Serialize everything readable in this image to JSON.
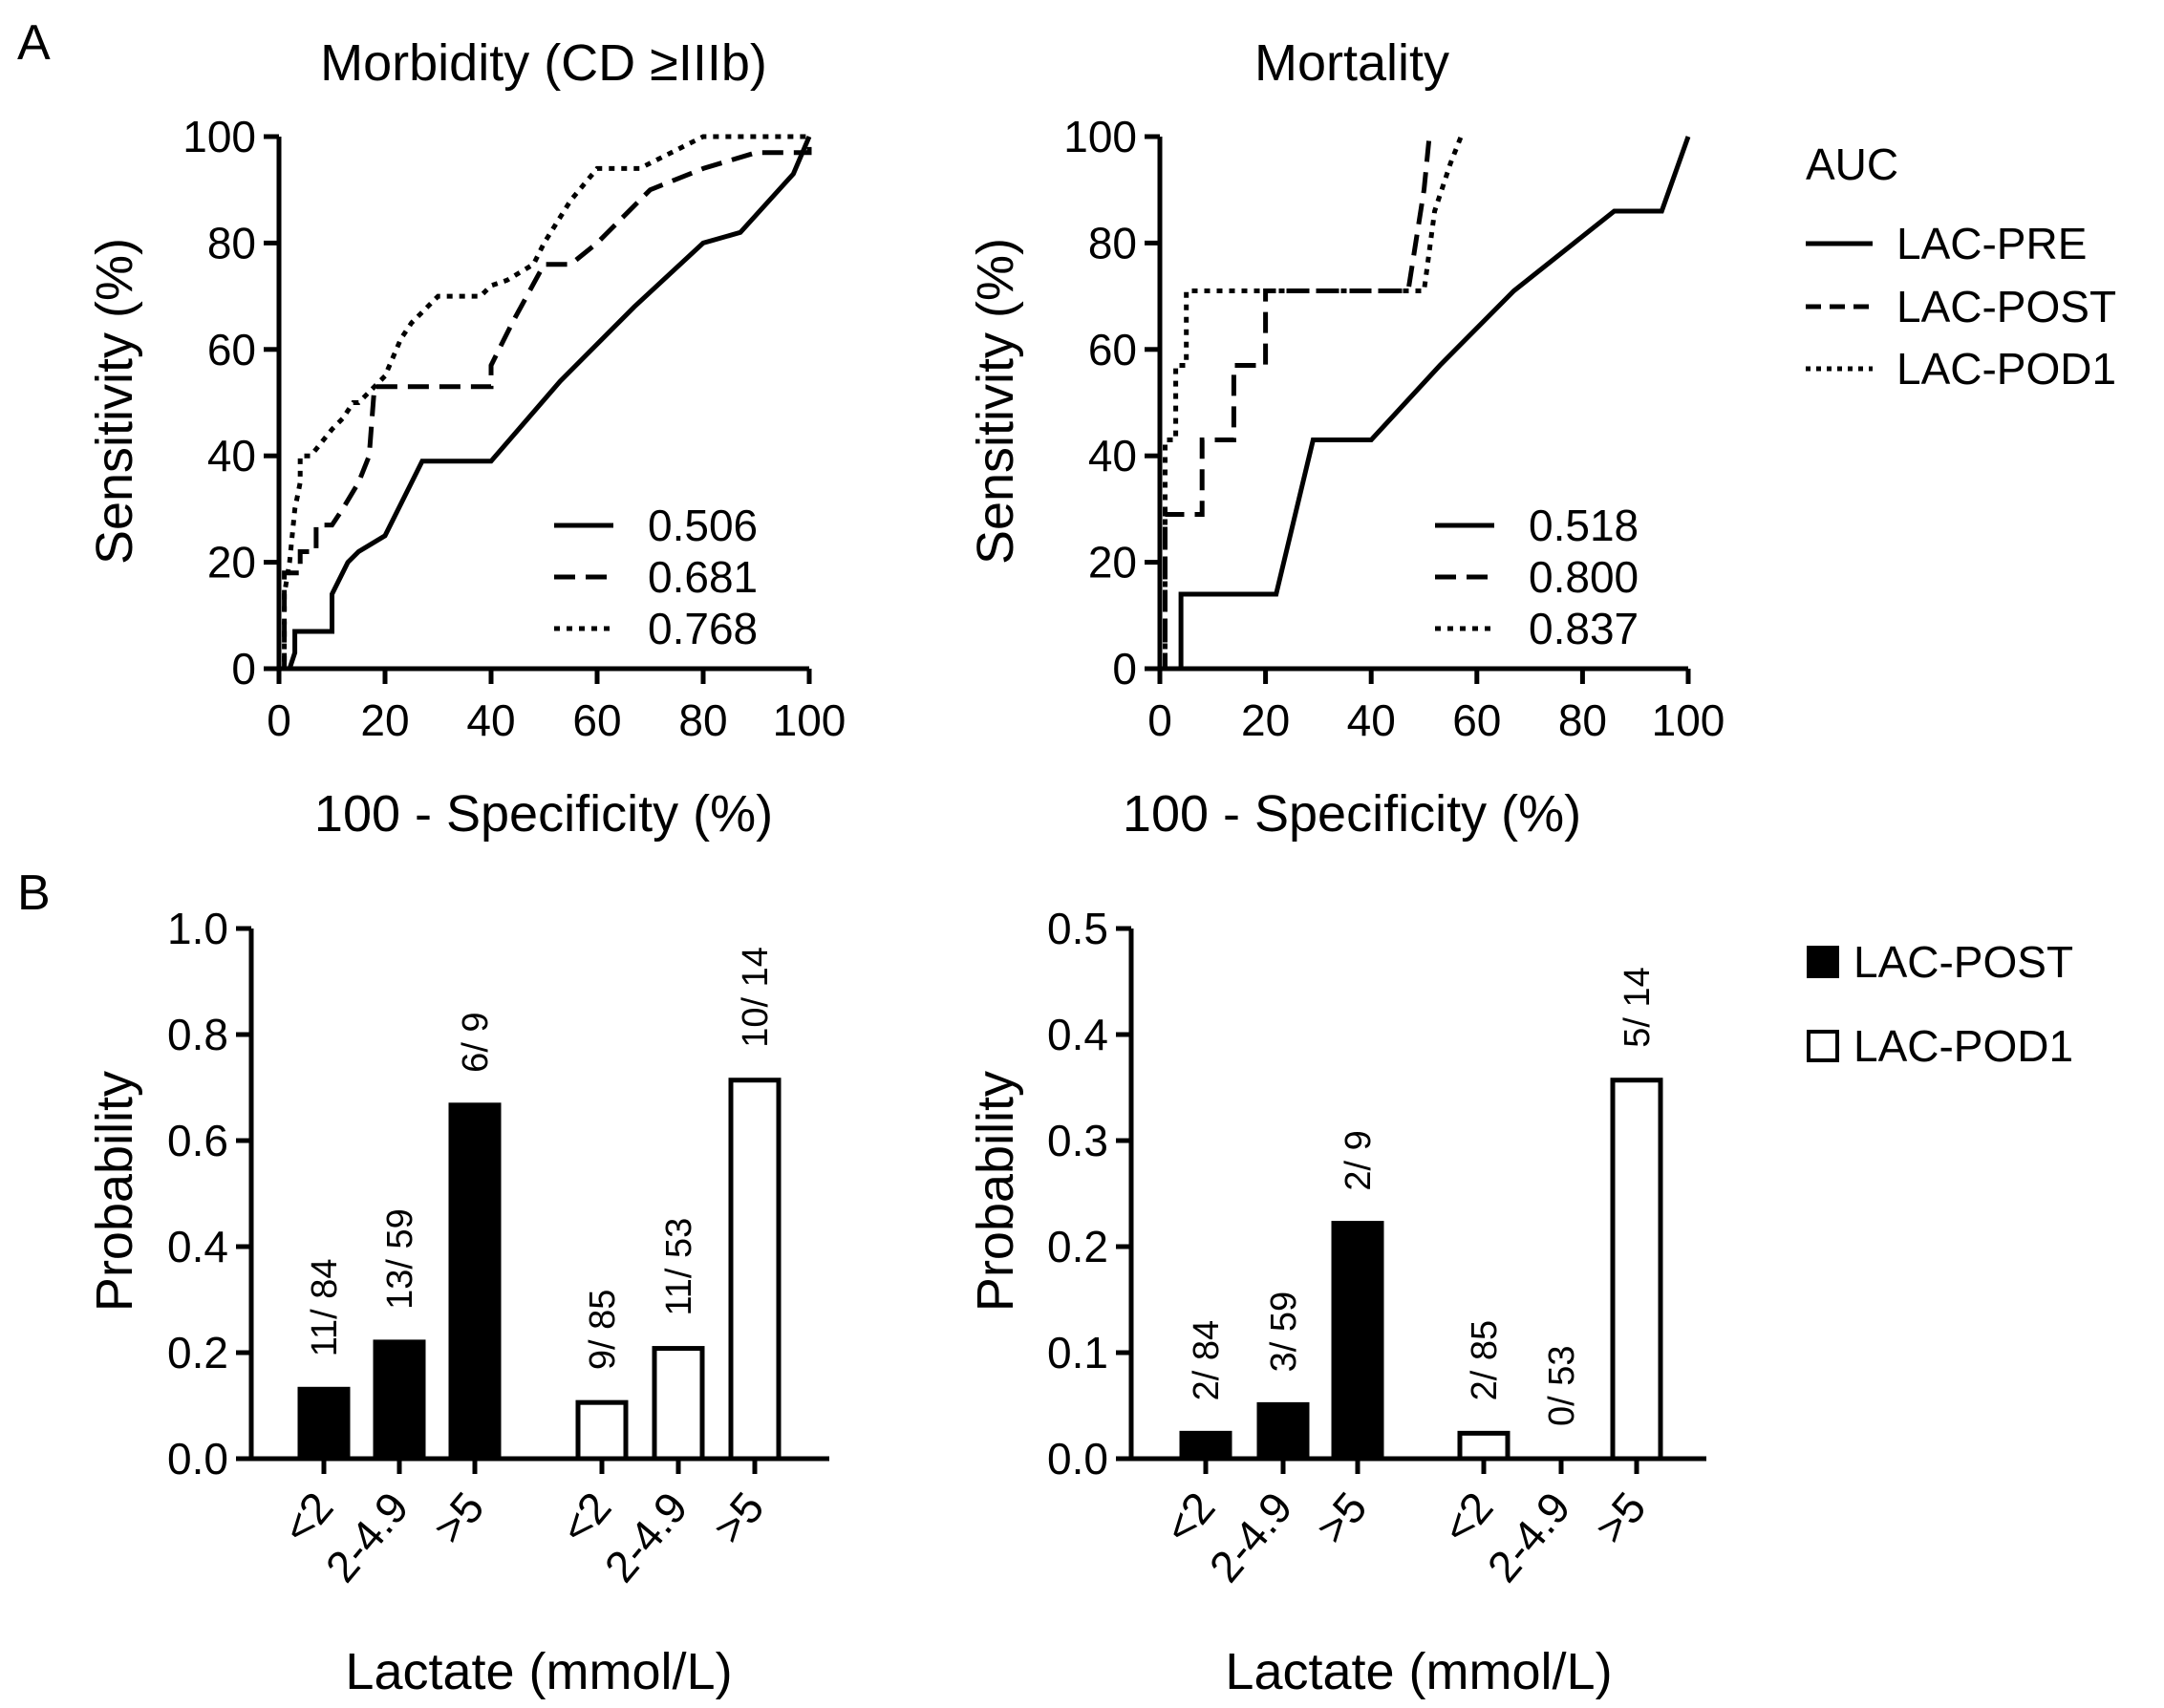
{
  "panel_labels": [
    "A",
    "B"
  ],
  "chart_data": [
    {
      "type": "line",
      "id": "roc-morbidity",
      "title": "Morbidity (CD ≥IIIb)",
      "xlabel": "100 - Specificity (%)",
      "ylabel": "Sensitivity (%)",
      "xlim": [
        0,
        100
      ],
      "ylim": [
        0,
        100
      ],
      "xticks": [
        "0",
        "20",
        "40",
        "60",
        "80",
        "100"
      ],
      "yticks": [
        "0",
        "20",
        "40",
        "60",
        "80",
        "100"
      ],
      "series": [
        {
          "name": "LAC-PRE",
          "style": "solid",
          "auc": "0.506",
          "x": [
            0,
            2,
            3,
            3,
            10,
            10,
            13,
            15,
            20,
            27,
            40,
            53,
            67,
            80,
            87,
            97,
            100
          ],
          "y": [
            0,
            0,
            3,
            7,
            7,
            14,
            20,
            22,
            25,
            39,
            39,
            54,
            68,
            80,
            82,
            93,
            100
          ]
        },
        {
          "name": "LAC-POST",
          "style": "dashed",
          "auc": "0.681",
          "x": [
            0,
            1,
            1,
            4,
            4,
            7,
            7,
            10,
            12,
            15,
            17,
            18,
            20,
            30,
            40,
            40,
            44,
            50,
            55,
            60,
            70,
            80,
            90,
            100,
            100
          ],
          "y": [
            0,
            0,
            18,
            18,
            22,
            22,
            27,
            27,
            30,
            35,
            40,
            53,
            53,
            53,
            53,
            57,
            65,
            76,
            76,
            80,
            90,
            94,
            97,
            97,
            100
          ]
        },
        {
          "name": "LAC-POD1",
          "style": "dotted",
          "auc": "0.768",
          "x": [
            0,
            1,
            1,
            2,
            3,
            4,
            4,
            6,
            10,
            12,
            14,
            15,
            17,
            20,
            23,
            25,
            27,
            30,
            33,
            38,
            40,
            43,
            48,
            50,
            55,
            60,
            68,
            72,
            80,
            100
          ],
          "y": [
            0,
            0,
            14,
            20,
            30,
            35,
            40,
            40,
            45,
            47,
            50,
            50,
            52,
            55,
            62,
            65,
            67,
            70,
            70,
            70,
            72,
            73,
            76,
            80,
            88,
            94,
            94,
            96,
            100,
            100
          ]
        }
      ]
    },
    {
      "type": "line",
      "id": "roc-mortality",
      "title": "Mortality",
      "xlabel": "100 - Specificity (%)",
      "ylabel": "Sensitivity (%)",
      "xlim": [
        0,
        100
      ],
      "ylim": [
        0,
        100
      ],
      "xticks": [
        "0",
        "20",
        "40",
        "60",
        "80",
        "100"
      ],
      "yticks": [
        "0",
        "20",
        "40",
        "60",
        "80",
        "100"
      ],
      "series": [
        {
          "name": "LAC-PRE",
          "style": "solid",
          "auc": "0.518",
          "x": [
            0,
            4,
            4,
            22,
            29,
            40,
            53,
            67,
            86,
            95,
            100
          ],
          "y": [
            0,
            0,
            14,
            14,
            43,
            43,
            57,
            71,
            86,
            86,
            100
          ]
        },
        {
          "name": "LAC-POST",
          "style": "dashed",
          "auc": "0.800",
          "x": [
            0,
            1,
            1,
            8,
            8,
            14,
            14,
            20,
            20,
            47,
            50,
            51
          ],
          "y": [
            0,
            0,
            29,
            29,
            43,
            43,
            57,
            57,
            71,
            71,
            90,
            100
          ]
        },
        {
          "name": "LAC-POD1",
          "style": "dotted",
          "auc": "0.837",
          "x": [
            0,
            1,
            1,
            3,
            3,
            5,
            5,
            50,
            52,
            55,
            57
          ],
          "y": [
            0,
            0,
            43,
            43,
            57,
            57,
            71,
            71,
            86,
            95,
            100
          ]
        }
      ]
    },
    {
      "type": "bar",
      "id": "bar-morbidity",
      "xlabel": "Lactate (mmol/L)",
      "ylabel": "Probability",
      "ylim": [
        0,
        1.0
      ],
      "yticks": [
        "0.0",
        "0.2",
        "0.4",
        "0.6",
        "0.8",
        "1.0"
      ],
      "categories": [
        "<2",
        "2-4.9",
        ">5",
        "<2",
        "2-4.9",
        ">5"
      ],
      "groups": [
        "LAC-POST",
        "LAC-POST",
        "LAC-POST",
        "LAC-POD1",
        "LAC-POD1",
        "LAC-POD1"
      ],
      "values": [
        0.131,
        0.22,
        0.667,
        0.106,
        0.208,
        0.714
      ],
      "labels": [
        "11/ 84",
        "13/ 59",
        "6/ 9",
        "9/ 85",
        "11/ 53",
        "10/ 14"
      ]
    },
    {
      "type": "bar",
      "id": "bar-mortality",
      "xlabel": "Lactate (mmol/L)",
      "ylabel": "Probability",
      "ylim": [
        0,
        0.5
      ],
      "yticks": [
        "0.0",
        "0.1",
        "0.2",
        "0.3",
        "0.4",
        "0.5"
      ],
      "categories": [
        "<2",
        "2-4.9",
        ">5",
        "<2",
        "2-4.9",
        ">5"
      ],
      "groups": [
        "LAC-POST",
        "LAC-POST",
        "LAC-POST",
        "LAC-POD1",
        "LAC-POD1",
        "LAC-POD1"
      ],
      "values": [
        0.024,
        0.051,
        0.222,
        0.024,
        0.0,
        0.357
      ],
      "labels": [
        "2/ 84",
        "3/ 59",
        "2/ 9",
        "2/ 85",
        "0/ 53",
        "5/ 14"
      ]
    }
  ],
  "legend_roc": {
    "title": "AUC",
    "items": [
      "LAC-PRE",
      "LAC-POST",
      "LAC-POD1"
    ]
  },
  "legend_bar": {
    "items": [
      "LAC-POST",
      "LAC-POD1"
    ]
  }
}
